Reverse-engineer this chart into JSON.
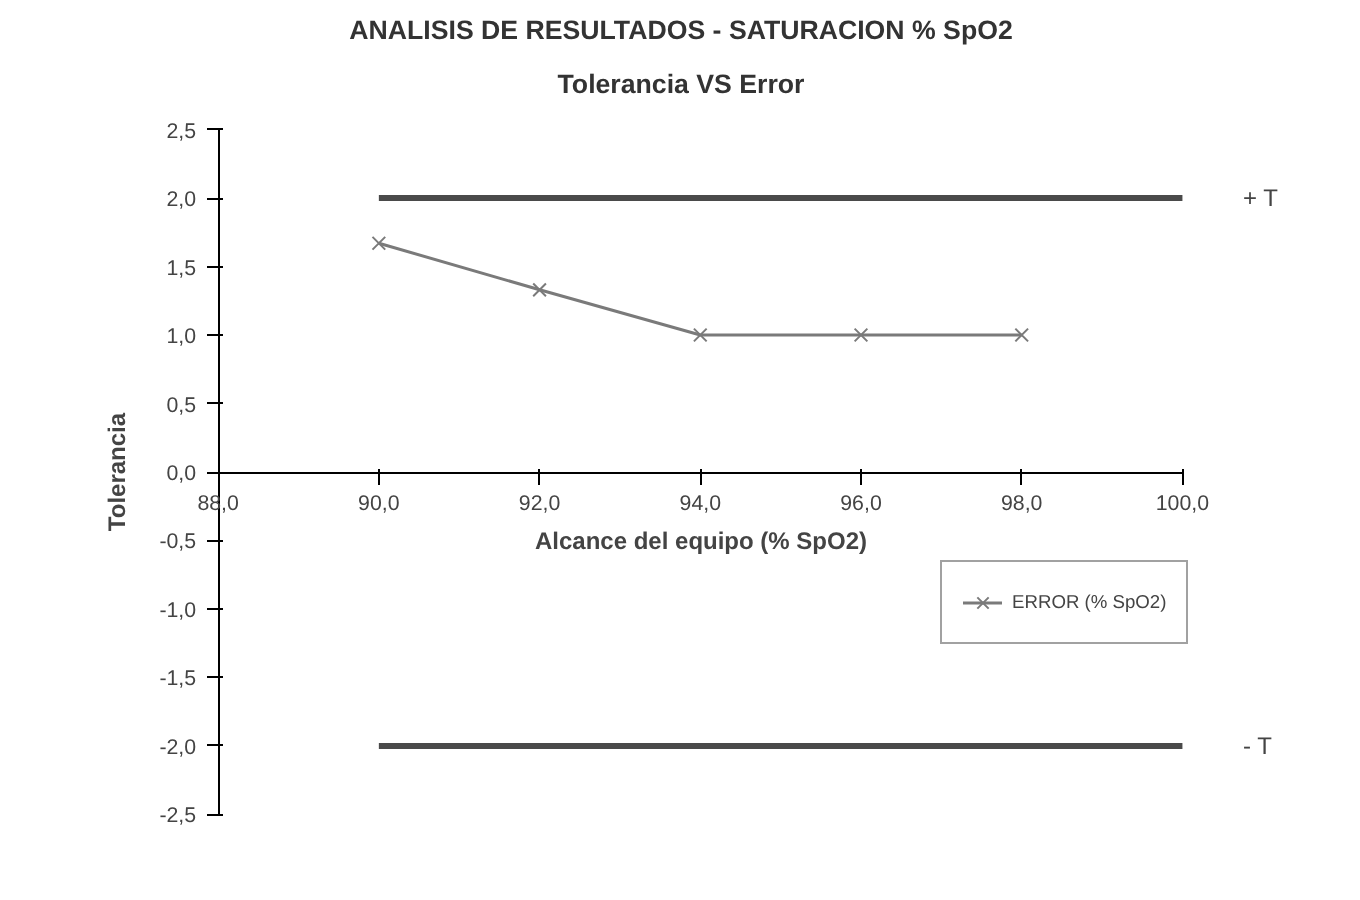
{
  "chart_data": {
    "type": "line",
    "title": "ANALISIS DE RESULTADOS - SATURACION % SpO2",
    "subtitle": "Tolerancia VS Error",
    "xlabel": "Alcance del equipo (% SpO2)",
    "ylabel": "Tolerancia",
    "series": [
      {
        "name": "+ T",
        "color": "#4a4a4a",
        "x": [
          90,
          100
        ],
        "values": [
          2.0,
          2.0
        ],
        "marker": "none"
      },
      {
        "name": "ERROR (% SpO2)",
        "color": "#7a7a7a",
        "x": [
          90,
          92,
          94,
          96,
          98
        ],
        "values": [
          1.67,
          1.33,
          1.0,
          1.0,
          1.0
        ],
        "marker": "cross"
      },
      {
        "name": "- T",
        "color": "#4a4a4a",
        "x": [
          90,
          100
        ],
        "values": [
          -2.0,
          -2.0
        ],
        "marker": "none"
      }
    ],
    "xlim": [
      88,
      100
    ],
    "ylim": [
      -2.5,
      2.5
    ],
    "xticks": [
      {
        "value": 88,
        "label": "88,0"
      },
      {
        "value": 90,
        "label": "90,0"
      },
      {
        "value": 92,
        "label": "92,0"
      },
      {
        "value": 94,
        "label": "94,0"
      },
      {
        "value": 96,
        "label": "96,0"
      },
      {
        "value": 98,
        "label": "98,0"
      },
      {
        "value": 100,
        "label": "100,0"
      }
    ],
    "yticks": [
      {
        "value": -2.5,
        "label": "-2,5"
      },
      {
        "value": -2,
        "label": "-2,0"
      },
      {
        "value": -1.5,
        "label": "-1,5"
      },
      {
        "value": -1,
        "label": "-1,0"
      },
      {
        "value": -0.5,
        "label": "-0,5"
      },
      {
        "value": 0,
        "label": "0,0"
      },
      {
        "value": 0.5,
        "label": "0,5"
      },
      {
        "value": 1,
        "label": "1,0"
      },
      {
        "value": 1.5,
        "label": "1,5"
      },
      {
        "value": 2,
        "label": "2,0"
      },
      {
        "value": 2.5,
        "label": "2,5"
      }
    ],
    "grid": false,
    "legend": "right",
    "line_style": "solid"
  }
}
